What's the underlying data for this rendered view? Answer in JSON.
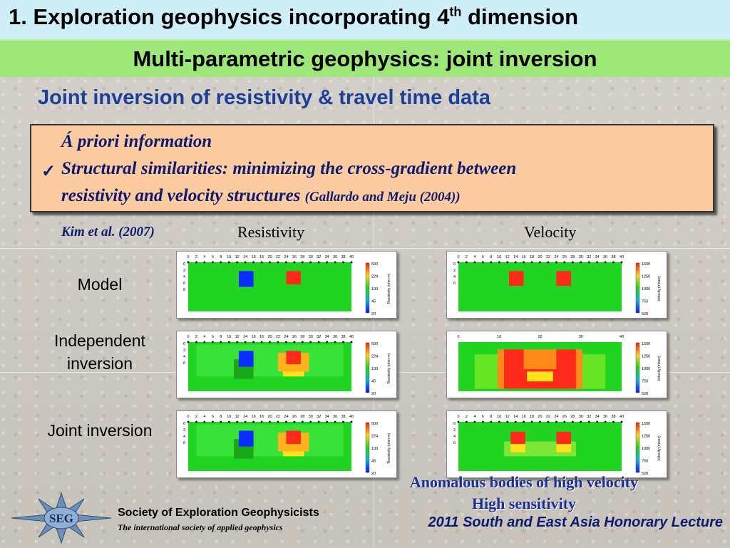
{
  "header": {
    "title_main": "1. Exploration geophysics incorporating 4",
    "title_sup": "th",
    "title_tail": " dimension",
    "subtitle": "Multi-parametric geophysics: joint inversion"
  },
  "section_heading": "Joint inversion of resistivity & travel time data",
  "info_box": {
    "line1": "Á priori information",
    "line2": "Structural similarities: minimizing the cross-gradient between",
    "line3": "resistivity and velocity structures",
    "reference": "(Gallardo and Meju (2004))",
    "check_icon": "checkmark-icon"
  },
  "figure": {
    "citation": "Kim et al. (2007)",
    "columns": [
      "Resistivity",
      "Velocity"
    ],
    "rows": [
      {
        "label": "Model"
      },
      {
        "label": "Independent inversion"
      },
      {
        "label": "Joint inversion"
      }
    ],
    "resistivity_axis": {
      "x_ticks": [
        "0",
        "2",
        "4",
        "6",
        "8",
        "10",
        "12",
        "14",
        "16",
        "18",
        "20",
        "22",
        "24",
        "26",
        "28",
        "30",
        "32",
        "34",
        "36",
        "38",
        "40"
      ],
      "y_ticks": [
        "0",
        "2",
        "4",
        "6",
        "8"
      ],
      "colorbar_ticks": [
        "500",
        "224",
        "100",
        "45",
        "20"
      ],
      "colorbar_label": "Resistivity (ohm-m)"
    },
    "velocity_axis": {
      "x_ticks_fine": [
        "0",
        "2",
        "4",
        "6",
        "8",
        "10",
        "12",
        "14",
        "16",
        "18",
        "20",
        "22",
        "24",
        "26",
        "28",
        "30",
        "32",
        "34",
        "36",
        "38",
        "40"
      ],
      "x_ticks_coarse": [
        "0",
        "10",
        "20",
        "30",
        "40"
      ],
      "y_ticks": [
        "0",
        "2",
        "4",
        "6",
        "8"
      ],
      "colorbar_ticks": [
        "1500",
        "1250",
        "1000",
        "750",
        "500"
      ],
      "colorbar_label": "Velocity (m/sec)"
    },
    "colors": {
      "background_green": "#22d422",
      "high_red": "#ff2a1a",
      "low_blue": "#0a2cff",
      "yellow": "#ffe21a"
    }
  },
  "annotation": {
    "line1": "Anomalous bodies of high velocity",
    "line2": "High sensitivity"
  },
  "footer": {
    "logo_text": "SEG",
    "org_name": "Society of Exploration Geophysicists",
    "org_tagline": "The international society of applied geophysics",
    "lecture": "2011 South and East Asia Honorary Lecture"
  }
}
